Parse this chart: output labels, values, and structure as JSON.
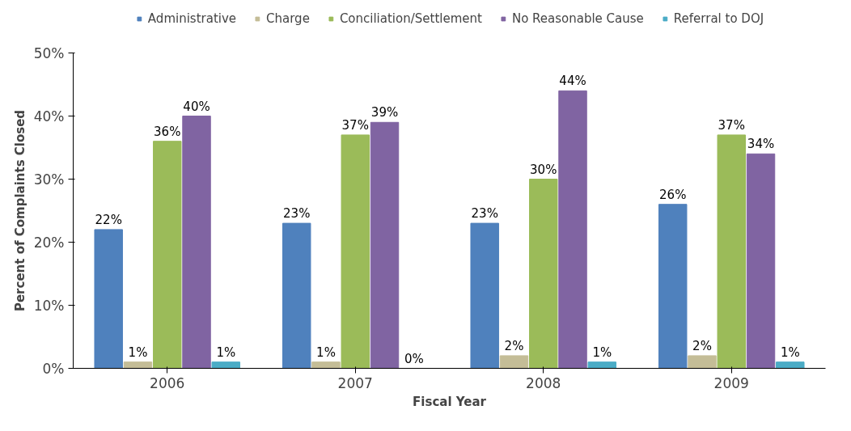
{
  "chart_data": {
    "type": "bar",
    "xlabel": "Fiscal Year",
    "ylabel": "Percent of Complaints Closed",
    "categories": [
      "2006",
      "2007",
      "2008",
      "2009"
    ],
    "series": [
      {
        "name": "Administrative",
        "color": "#4f81bd",
        "values": [
          22,
          23,
          23,
          26
        ],
        "value_labels": [
          "22%",
          "23%",
          "23%",
          "26%"
        ]
      },
      {
        "name": "Charge",
        "color": "#c4bd97",
        "values": [
          1,
          1,
          2,
          2
        ],
        "value_labels": [
          "1%",
          "1%",
          "2%",
          "2%"
        ]
      },
      {
        "name": "Conciliation/Settlement",
        "color": "#9bbb59",
        "values": [
          36,
          37,
          30,
          37
        ],
        "value_labels": [
          "36%",
          "37%",
          "30%",
          "37%"
        ]
      },
      {
        "name": "No Reasonable Cause",
        "color": "#8064a2",
        "values": [
          40,
          39,
          44,
          34
        ],
        "value_labels": [
          "40%",
          "39%",
          "44%",
          "34%"
        ]
      },
      {
        "name": "Referral to DOJ",
        "color": "#4bacc6",
        "values": [
          1,
          0,
          1,
          1
        ],
        "value_labels": [
          "1%",
          "0%",
          "1%",
          "1%"
        ]
      }
    ],
    "ylim": [
      0,
      50
    ],
    "yticks": [
      {
        "value": 0,
        "label": "0%"
      },
      {
        "value": 10,
        "label": "10%"
      },
      {
        "value": 20,
        "label": "20%"
      },
      {
        "value": 30,
        "label": "30%"
      },
      {
        "value": 40,
        "label": "40%"
      },
      {
        "value": 50,
        "label": "50%"
      }
    ],
    "grid": false,
    "legend": "top"
  }
}
